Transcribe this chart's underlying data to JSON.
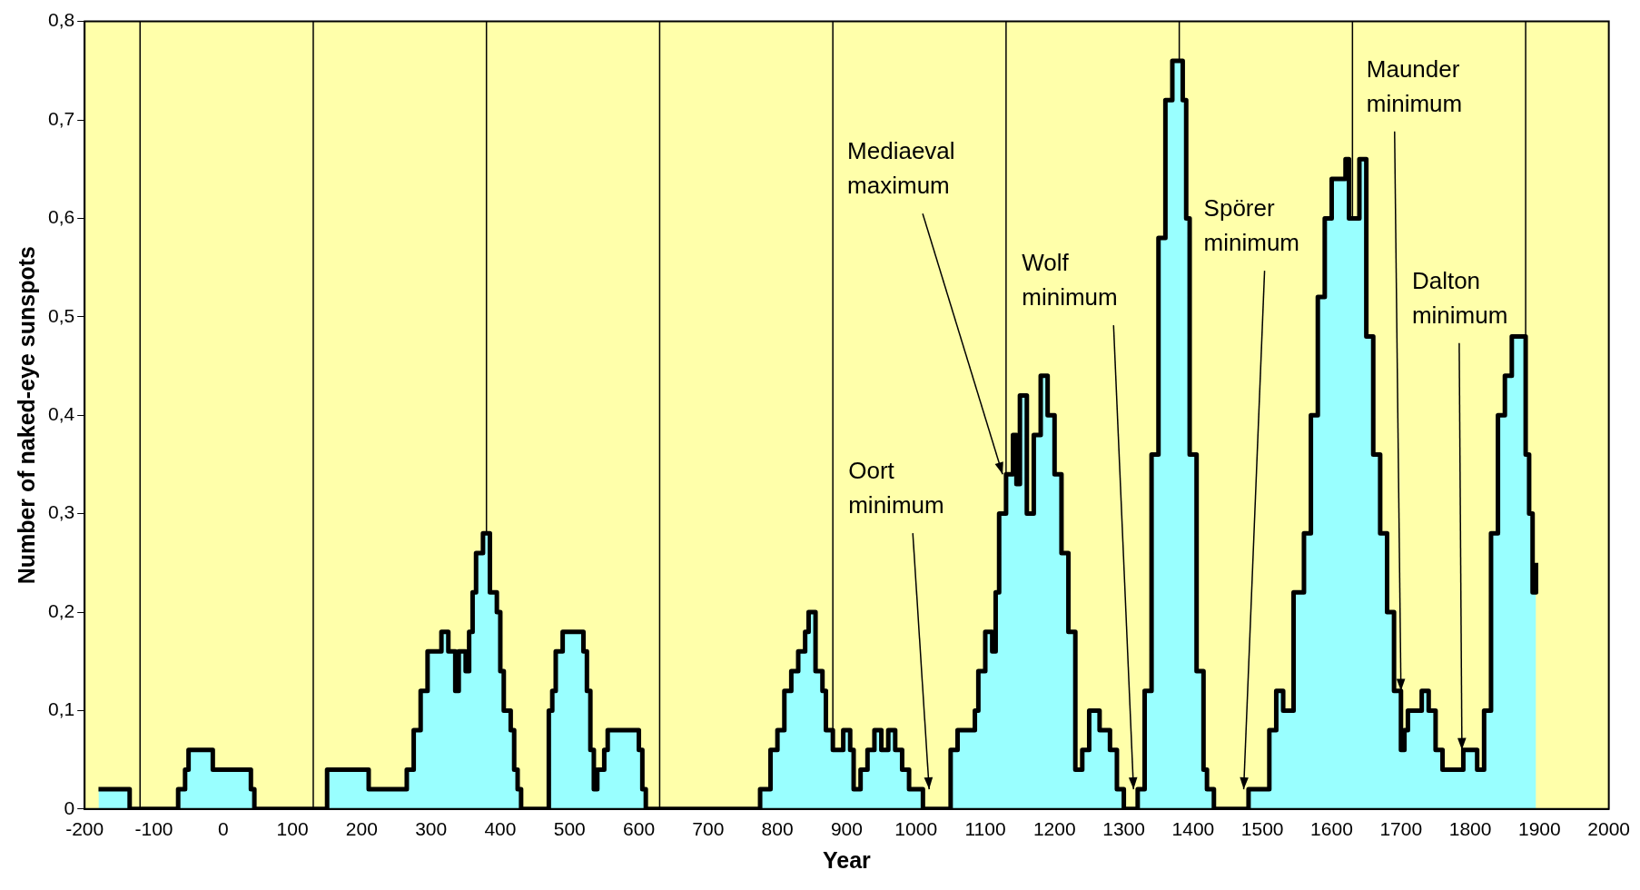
{
  "chart_data": {
    "type": "step",
    "xlabel": "Year",
    "ylabel": "Number of naked-eye sunspots",
    "xlim": [
      -200,
      2000
    ],
    "xticks": [
      -200,
      -100,
      0,
      100,
      200,
      300,
      400,
      500,
      600,
      700,
      800,
      900,
      1000,
      1100,
      1200,
      1300,
      1400,
      1500,
      1600,
      1700,
      1800,
      1900,
      2000
    ],
    "ylim": [
      0,
      0.8
    ],
    "yticks": [
      {
        "value": 0,
        "label": "0"
      },
      {
        "value": 0.1,
        "label": "0,1"
      },
      {
        "value": 0.2,
        "label": "0,2"
      },
      {
        "value": 0.3,
        "label": "0,3"
      },
      {
        "value": 0.4,
        "label": "0,4"
      },
      {
        "value": 0.5,
        "label": "0,5"
      },
      {
        "value": 0.6,
        "label": "0,6"
      },
      {
        "value": 0.7,
        "label": "0,7"
      },
      {
        "value": 0.8,
        "label": "0,8"
      }
    ],
    "series": [
      {
        "color": "#000000",
        "x": [
          -180,
          -135,
          -65,
          -55,
          -50,
          -15,
          40,
          45,
          150,
          210,
          255,
          265,
          275,
          285,
          295,
          315,
          325,
          335,
          340,
          350,
          355,
          360,
          365,
          375,
          385,
          395,
          400,
          405,
          415,
          420,
          425,
          430,
          470,
          475,
          480,
          490,
          520,
          525,
          530,
          535,
          540,
          550,
          555,
          600,
          605,
          610,
          775,
          790,
          800,
          810,
          820,
          830,
          840,
          845,
          855,
          865,
          870,
          880,
          895,
          905,
          910,
          920,
          930,
          940,
          950,
          960,
          970,
          980,
          990,
          1010,
          1050,
          1060,
          1085,
          1090,
          1100,
          1110,
          1115,
          1120,
          1130,
          1140,
          1145,
          1150,
          1160,
          1170,
          1180,
          1190,
          1200,
          1210,
          1220,
          1230,
          1240,
          1250,
          1265,
          1280,
          1290,
          1300,
          1320,
          1330,
          1340,
          1350,
          1360,
          1370,
          1385,
          1390,
          1395,
          1405,
          1415,
          1420,
          1430,
          1480,
          1510,
          1520,
          1530,
          1545,
          1560,
          1570,
          1580,
          1590,
          1600,
          1620,
          1625,
          1640,
          1650,
          1660,
          1670,
          1680,
          1690,
          1700,
          1705,
          1710,
          1730,
          1740,
          1750,
          1760,
          1790,
          1810,
          1820,
          1830,
          1840,
          1850,
          1860,
          1880,
          1885,
          1890,
          1895
        ],
        "values": [
          0.02,
          0,
          0.02,
          0.04,
          0.06,
          0.04,
          0.02,
          0,
          0.04,
          0.02,
          0.02,
          0.04,
          0.08,
          0.12,
          0.16,
          0.18,
          0.16,
          0.12,
          0.16,
          0.14,
          0.18,
          0.22,
          0.26,
          0.28,
          0.22,
          0.2,
          0.14,
          0.1,
          0.08,
          0.04,
          0.02,
          0,
          0.1,
          0.12,
          0.16,
          0.18,
          0.16,
          0.12,
          0.06,
          0.02,
          0.04,
          0.06,
          0.08,
          0.06,
          0.02,
          0,
          0.02,
          0.06,
          0.08,
          0.12,
          0.14,
          0.16,
          0.18,
          0.2,
          0.14,
          0.12,
          0.08,
          0.06,
          0.08,
          0.06,
          0.02,
          0.04,
          0.06,
          0.08,
          0.06,
          0.08,
          0.06,
          0.04,
          0.02,
          0,
          0.06,
          0.08,
          0.1,
          0.14,
          0.18,
          0.16,
          0.22,
          0.3,
          0.34,
          0.38,
          0.33,
          0.42,
          0.3,
          0.38,
          0.44,
          0.4,
          0.34,
          0.26,
          0.18,
          0.04,
          0.06,
          0.1,
          0.08,
          0.06,
          0.02,
          0,
          0.02,
          0.12,
          0.36,
          0.58,
          0.72,
          0.76,
          0.72,
          0.6,
          0.36,
          0.14,
          0.04,
          0.02,
          0,
          0.02,
          0.08,
          0.12,
          0.1,
          0.22,
          0.28,
          0.4,
          0.52,
          0.6,
          0.64,
          0.66,
          0.6,
          0.66,
          0.48,
          0.36,
          0.28,
          0.2,
          0.12,
          0.06,
          0.08,
          0.1,
          0.12,
          0.1,
          0.06,
          0.04,
          0.06,
          0.04,
          0.1,
          0.28,
          0.4,
          0.44,
          0.48,
          0.36,
          0.3,
          0.22,
          0.25
        ]
      }
    ],
    "ref_lines": [
      {
        "axis": "x",
        "value": -120,
        "color": "#000000"
      },
      {
        "axis": "x",
        "value": 130,
        "color": "#000000"
      },
      {
        "axis": "x",
        "value": 380,
        "color": "#000000"
      },
      {
        "axis": "x",
        "value": 630,
        "color": "#000000"
      },
      {
        "axis": "x",
        "value": 880,
        "color": "#000000"
      },
      {
        "axis": "x",
        "value": 1130,
        "color": "#000000"
      },
      {
        "axis": "x",
        "value": 1380,
        "color": "#000000"
      },
      {
        "axis": "x",
        "value": 1630,
        "color": "#000000"
      },
      {
        "axis": "x",
        "value": 1880,
        "color": "#000000"
      }
    ],
    "annotations": [
      {
        "text": "Mediaeval maximum",
        "x": 1125,
        "y": 0.34
      },
      {
        "text": "Oort minimum",
        "x": 1019,
        "y": 0.02
      },
      {
        "text": "Wolf minimum",
        "x": 1314,
        "y": 0.02
      },
      {
        "text": "Spörer minimum",
        "x": 1473,
        "y": 0.02
      },
      {
        "text": "Maunder minimum",
        "x": 1700,
        "y": 0.12
      },
      {
        "text": "Dalton minimum",
        "x": 1788,
        "y": 0.06
      }
    ]
  }
}
